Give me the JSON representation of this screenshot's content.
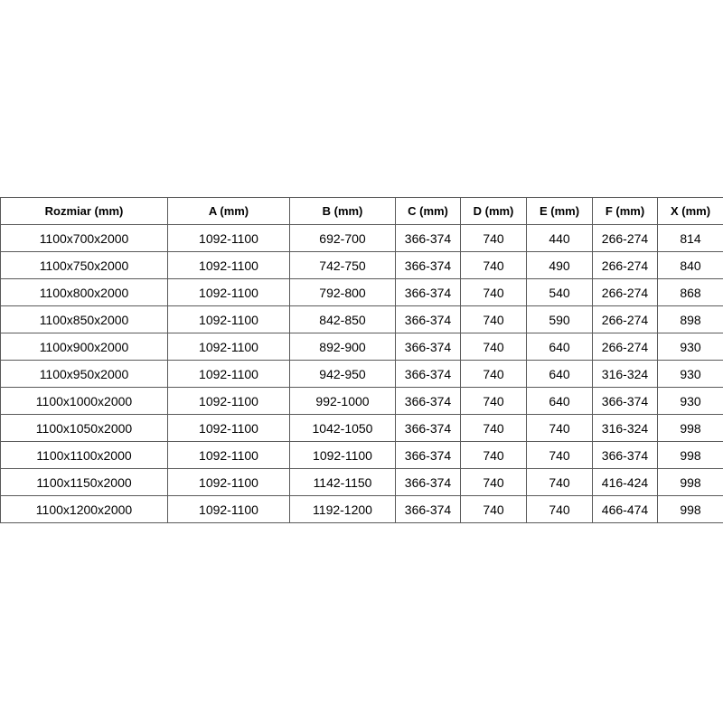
{
  "table": {
    "headers": [
      "Rozmiar (mm)",
      "A (mm)",
      "B (mm)",
      "C (mm)",
      "D (mm)",
      "E (mm)",
      "F (mm)",
      "X (mm)"
    ],
    "rows": [
      [
        "1100x700x2000",
        "1092-1100",
        "692-700",
        "366-374",
        "740",
        "440",
        "266-274",
        "814"
      ],
      [
        "1100x750x2000",
        "1092-1100",
        "742-750",
        "366-374",
        "740",
        "490",
        "266-274",
        "840"
      ],
      [
        "1100x800x2000",
        "1092-1100",
        "792-800",
        "366-374",
        "740",
        "540",
        "266-274",
        "868"
      ],
      [
        "1100x850x2000",
        "1092-1100",
        "842-850",
        "366-374",
        "740",
        "590",
        "266-274",
        "898"
      ],
      [
        "1100x900x2000",
        "1092-1100",
        "892-900",
        "366-374",
        "740",
        "640",
        "266-274",
        "930"
      ],
      [
        "1100x950x2000",
        "1092-1100",
        "942-950",
        "366-374",
        "740",
        "640",
        "316-324",
        "930"
      ],
      [
        "1100x1000x2000",
        "1092-1100",
        "992-1000",
        "366-374",
        "740",
        "640",
        "366-374",
        "930"
      ],
      [
        "1100x1050x2000",
        "1092-1100",
        "1042-1050",
        "366-374",
        "740",
        "740",
        "316-324",
        "998"
      ],
      [
        "1100x1100x2000",
        "1092-1100",
        "1092-1100",
        "366-374",
        "740",
        "740",
        "366-374",
        "998"
      ],
      [
        "1100x1150x2000",
        "1092-1100",
        "1142-1150",
        "366-374",
        "740",
        "740",
        "416-424",
        "998"
      ],
      [
        "1100x1200x2000",
        "1092-1100",
        "1192-1200",
        "366-374",
        "740",
        "740",
        "466-474",
        "998"
      ]
    ],
    "colors": {
      "border": "#595959",
      "text": "#000000",
      "background": "#ffffff"
    }
  }
}
